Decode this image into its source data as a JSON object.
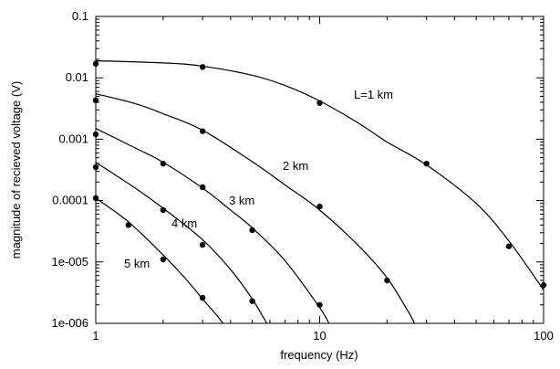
{
  "chart_data": {
    "type": "line",
    "title": "",
    "xlabel": "frequency (Hz)",
    "ylabel": "magnitude of recieved voltage (V)",
    "x_scale": "log",
    "y_scale": "log",
    "xlim": [
      1,
      100
    ],
    "ylim": [
      1e-06,
      0.1
    ],
    "x_ticks": [
      1,
      10,
      100
    ],
    "x_tick_labels": [
      "1",
      "10",
      "100"
    ],
    "y_ticks": [
      0.1,
      0.01,
      0.001,
      0.0001,
      1e-05,
      1e-06
    ],
    "y_tick_labels": [
      "0.1",
      "0.01",
      "0.001",
      "0.0001",
      "1e-005",
      "1e-006"
    ],
    "grid": false,
    "series": [
      {
        "label": "L=1 km",
        "curve": [
          [
            1,
            0.019
          ],
          [
            2,
            0.0175
          ],
          [
            3,
            0.0155
          ],
          [
            5,
            0.011
          ],
          [
            7,
            0.0075
          ],
          [
            10,
            0.0042
          ],
          [
            15,
            0.0018
          ],
          [
            20,
            0.0009
          ],
          [
            30,
            0.00038
          ],
          [
            50,
            9e-05
          ],
          [
            70,
            2.2e-05
          ],
          [
            100,
            3.5e-06
          ]
        ],
        "points": [
          [
            1,
            0.017
          ],
          [
            3,
            0.015
          ],
          [
            10,
            0.0039
          ],
          [
            30,
            0.0004
          ],
          [
            70,
            1.8e-05
          ],
          [
            100,
            4.2e-06
          ]
        ]
      },
      {
        "label": "2 km",
        "curve": [
          [
            1,
            0.0055
          ],
          [
            1.5,
            0.0038
          ],
          [
            2,
            0.0026
          ],
          [
            3,
            0.0014
          ],
          [
            5,
            0.00043
          ],
          [
            7,
            0.00018
          ],
          [
            10,
            7e-05
          ],
          [
            15,
            1.8e-05
          ],
          [
            20,
            5.5e-06
          ],
          [
            25,
            1.5e-06
          ],
          [
            26.5,
            1e-06
          ]
        ],
        "points": [
          [
            1,
            0.0043
          ],
          [
            3,
            0.00135
          ],
          [
            10,
            8e-05
          ],
          [
            20,
            5e-06
          ]
        ]
      },
      {
        "label": "3 km",
        "curve": [
          [
            1,
            0.0015
          ],
          [
            1.5,
            0.00072
          ],
          [
            2,
            0.00042
          ],
          [
            3,
            0.00016
          ],
          [
            4,
            7e-05
          ],
          [
            5,
            3.6e-05
          ],
          [
            7,
            1.05e-05
          ],
          [
            10,
            1.8e-06
          ],
          [
            11,
            1e-06
          ]
        ],
        "points": [
          [
            1,
            0.0012
          ],
          [
            2,
            0.0004
          ],
          [
            3,
            0.000165
          ],
          [
            5,
            3.3e-05
          ],
          [
            10,
            2e-06
          ]
        ]
      },
      {
        "label": "4 km",
        "curve": [
          [
            1,
            0.00042
          ],
          [
            1.5,
            0.00016
          ],
          [
            2,
            7.5e-05
          ],
          [
            3,
            2.3e-05
          ],
          [
            4,
            7.5e-06
          ],
          [
            5,
            2.5e-06
          ],
          [
            5.8,
            1e-06
          ]
        ],
        "points": [
          [
            1,
            0.00035
          ],
          [
            2,
            7e-05
          ],
          [
            3,
            1.9e-05
          ],
          [
            5,
            2.3e-06
          ]
        ]
      },
      {
        "label": "5 km",
        "curve": [
          [
            1,
            0.00011
          ],
          [
            1.4,
            4.5e-05
          ],
          [
            2,
            1.3e-05
          ],
          [
            2.5,
            5.5e-06
          ],
          [
            3,
            2.5e-06
          ],
          [
            3.5,
            1.3e-06
          ],
          [
            3.7,
            1e-06
          ]
        ],
        "points": [
          [
            1,
            0.00011
          ],
          [
            1.4,
            4e-05
          ],
          [
            2,
            1.1e-05
          ],
          [
            3,
            2.6e-06
          ]
        ]
      }
    ]
  }
}
